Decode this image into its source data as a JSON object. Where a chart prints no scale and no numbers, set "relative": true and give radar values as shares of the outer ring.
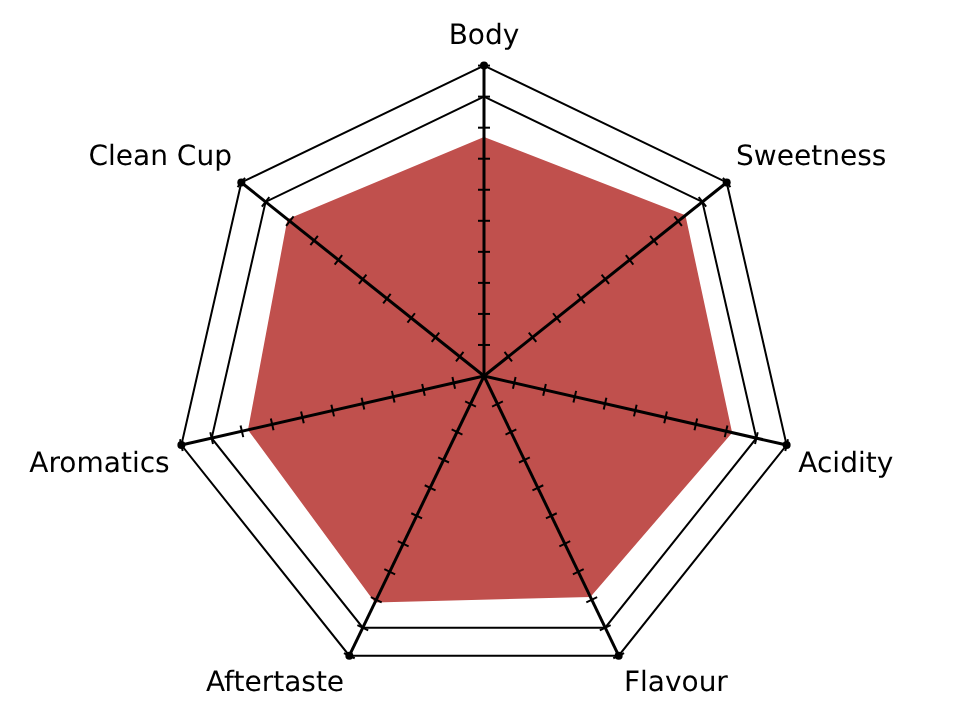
{
  "chart_data": {
    "type": "radar",
    "relative": true,
    "categories": [
      "Body",
      "Sweetness",
      "Acidity",
      "Flavour",
      "Aftertaste",
      "Aromatics",
      "Clean Cup"
    ],
    "series": [
      {
        "color": "#c0504d",
        "values": [
          0.77,
          0.83,
          0.82,
          0.79,
          0.81,
          0.78,
          0.81
        ]
      }
    ],
    "grid": true,
    "legend": false
  }
}
